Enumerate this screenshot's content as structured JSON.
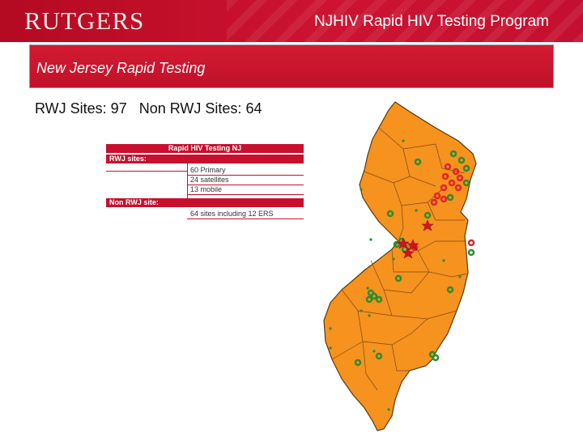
{
  "header": {
    "logo": "RUTGERS",
    "title": "NJHIV Rapid HIV Testing Program"
  },
  "subtitle": "New Jersey Rapid Testing",
  "stats": {
    "rwj": "RWJ Sites: 97",
    "non_rwj": "Non RWJ Sites: 64"
  },
  "legend": {
    "title": "Rapid HIV Testing NJ",
    "rwj_label": "RWJ  sites:",
    "rwj_lines": [
      "60 Primary",
      "24 satellites",
      "13 mobile"
    ],
    "non_rwj_label": "Non RWJ site:",
    "non_rwj_line": "64 sites including 12 ERS"
  },
  "map": {
    "fill_color": "#f6921e",
    "border_color": "#5a3a10",
    "rwj_marker_color": "#2e8b2e",
    "non_rwj_marker_color": "#e0242c",
    "hospital_star_color": "#d0151e"
  }
}
